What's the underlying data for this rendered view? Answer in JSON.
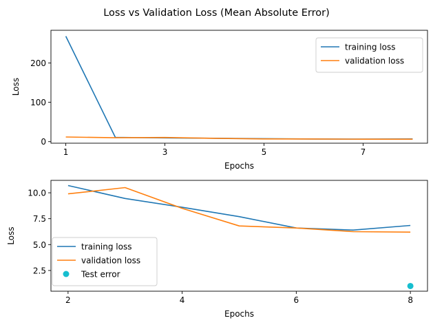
{
  "title": "Loss vs Validation Loss (Mean Absolute Error)",
  "colors": {
    "training": "#1f77b4",
    "validation": "#ff7f0e",
    "test": "#17becf"
  },
  "chart_data": [
    {
      "type": "line",
      "xlabel": "Epochs",
      "ylabel": "Loss",
      "xlim": [
        0.7,
        8.3
      ],
      "ylim": [
        -4,
        283
      ],
      "xticks": [
        1,
        3,
        5,
        7
      ],
      "yticks": [
        0,
        100,
        200
      ],
      "legend_position": "top-right",
      "series": [
        {
          "name": "training loss",
          "color": "#1f77b4",
          "x": [
            1,
            2,
            3,
            4,
            5,
            6,
            7,
            8
          ],
          "y": [
            268,
            10.7,
            9.4,
            8.6,
            7.6,
            6.6,
            6.4,
            6.8
          ]
        },
        {
          "name": "validation loss",
          "color": "#ff7f0e",
          "x": [
            1,
            2,
            3,
            4,
            5,
            6,
            7,
            8
          ],
          "y": [
            11.8,
            9.9,
            10.5,
            8.5,
            6.8,
            6.6,
            6.2,
            6.2
          ]
        }
      ]
    },
    {
      "type": "line",
      "xlabel": "Epochs",
      "ylabel": "Loss",
      "xlim": [
        1.7,
        8.3
      ],
      "ylim": [
        0.5,
        11.2
      ],
      "xticks": [
        2,
        4,
        6,
        8
      ],
      "yticks": [
        2.5,
        5.0,
        7.5,
        10.0
      ],
      "ytick_labels": [
        "2.5",
        "5.0",
        "7.5",
        "10.0"
      ],
      "legend_position": "bottom-left",
      "series": [
        {
          "name": "training loss",
          "color": "#1f77b4",
          "x": [
            2,
            3,
            4,
            5,
            6,
            7,
            8
          ],
          "y": [
            10.7,
            9.45,
            8.6,
            7.7,
            6.6,
            6.4,
            6.85
          ]
        },
        {
          "name": "validation loss",
          "color": "#ff7f0e",
          "x": [
            2,
            3,
            4,
            5,
            6,
            7,
            8
          ],
          "y": [
            9.9,
            10.5,
            8.5,
            6.8,
            6.6,
            6.25,
            6.2
          ]
        }
      ],
      "points": [
        {
          "name": "Test error",
          "color": "#17becf",
          "x": 8,
          "y": 1.0
        }
      ]
    }
  ]
}
